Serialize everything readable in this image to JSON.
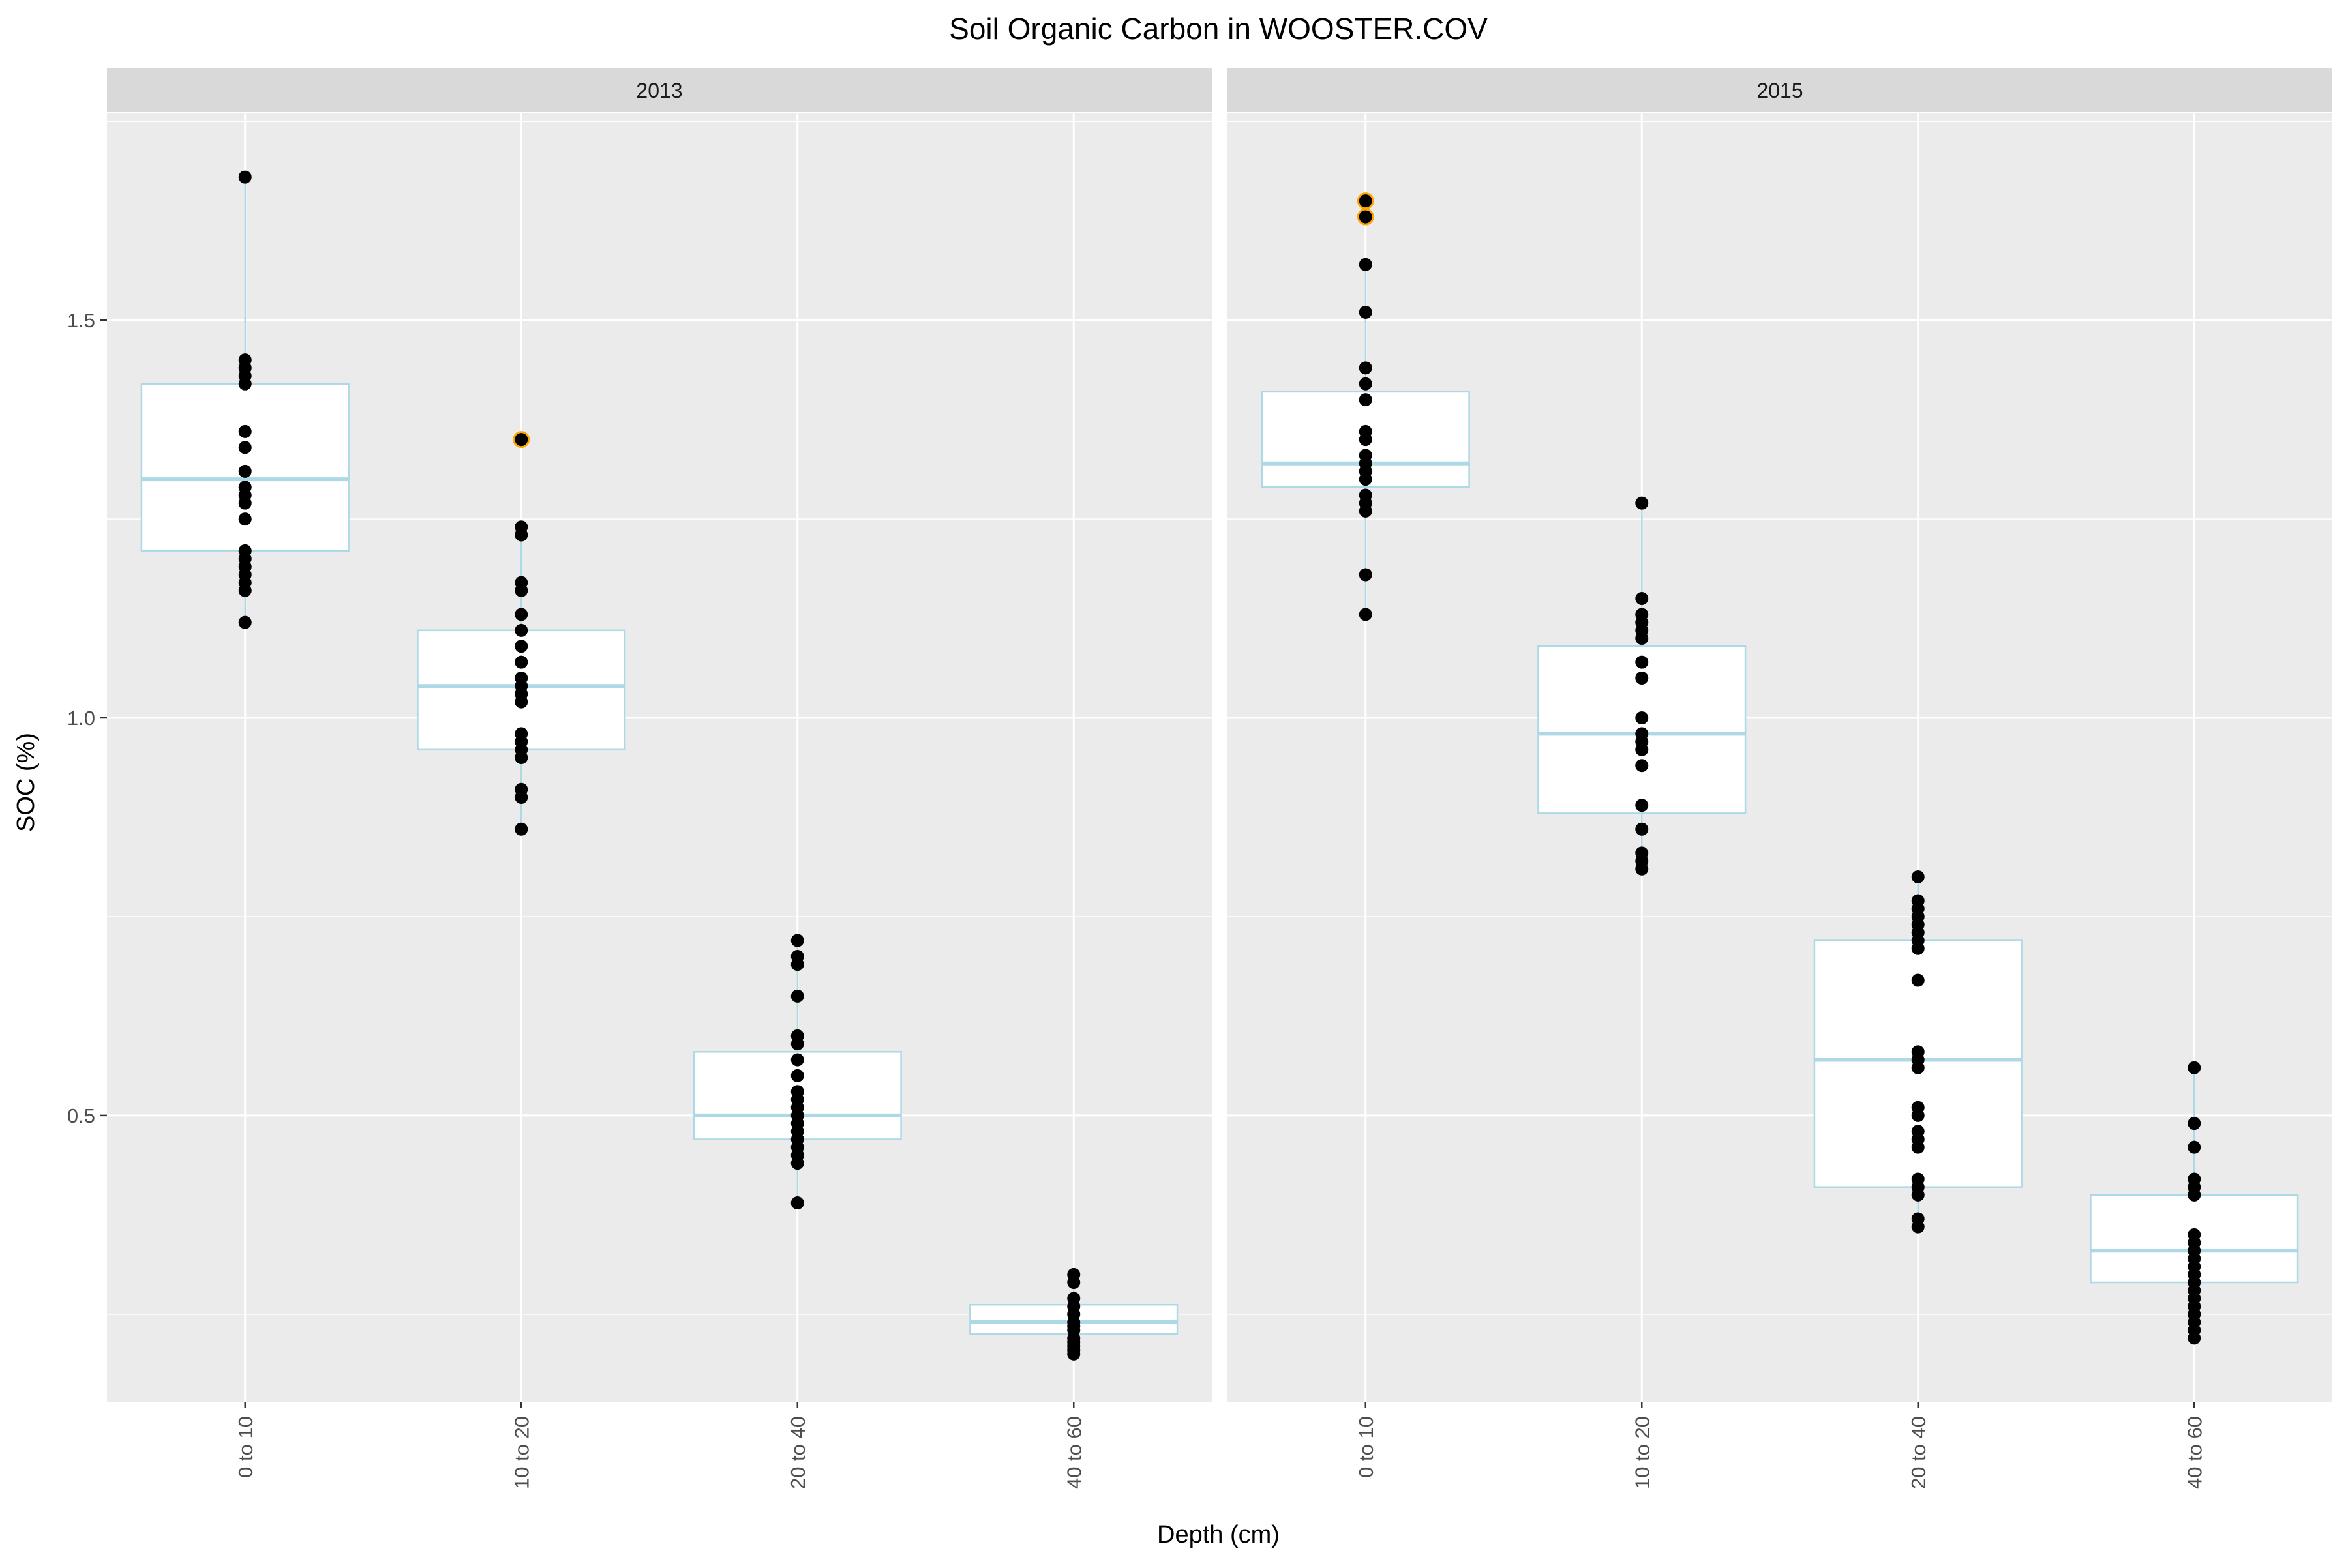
{
  "chart_data": {
    "type": "boxplot",
    "title": "Soil Organic Carbon in WOOSTER.COV",
    "xlabel": "Depth (cm)",
    "ylabel": "SOC (%)",
    "categories": [
      "0 to 10",
      "10 to 20",
      "20 to 40",
      "40 to 60"
    ],
    "y_ticks": [
      0.5,
      1.0,
      1.5
    ],
    "y_tick_labels": [
      "0.5",
      "1.0",
      "1.5"
    ],
    "ylim": [
      0.14,
      1.76
    ],
    "grid": true,
    "colors": {
      "panel_bg": "#ebebeb",
      "strip_bg": "#d9d9d9",
      "grid": "#ffffff",
      "box_stroke": "#add8e6",
      "box_fill": "#ffffff",
      "point": "#000000",
      "outlier_ring": "#ffa500"
    },
    "panels": [
      {
        "label": "2013",
        "boxes": [
          {
            "category": "0 to 10",
            "q1": 1.21,
            "median": 1.3,
            "q3": 1.42,
            "whisker_low": 1.12,
            "whisker_high": 1.68,
            "points": [
              1.68,
              1.45,
              1.44,
              1.43,
              1.42,
              1.36,
              1.34,
              1.31,
              1.29,
              1.28,
              1.27,
              1.25,
              1.21,
              1.2,
              1.19,
              1.18,
              1.17,
              1.16,
              1.12
            ],
            "outliers": []
          },
          {
            "category": "10 to 20",
            "q1": 0.96,
            "median": 1.04,
            "q3": 1.11,
            "whisker_low": 0.86,
            "whisker_high": 1.24,
            "points": [
              1.35,
              1.24,
              1.23,
              1.17,
              1.16,
              1.13,
              1.11,
              1.09,
              1.07,
              1.05,
              1.04,
              1.03,
              1.02,
              0.98,
              0.97,
              0.96,
              0.95,
              0.91,
              0.9,
              0.86
            ],
            "outliers": [
              1.35
            ]
          },
          {
            "category": "20 to 40",
            "q1": 0.47,
            "median": 0.5,
            "q3": 0.58,
            "whisker_low": 0.39,
            "whisker_high": 0.72,
            "points": [
              0.72,
              0.7,
              0.69,
              0.65,
              0.6,
              0.59,
              0.57,
              0.55,
              0.53,
              0.52,
              0.51,
              0.5,
              0.49,
              0.48,
              0.47,
              0.46,
              0.45,
              0.44,
              0.39
            ],
            "outliers": []
          },
          {
            "category": "40 to 60",
            "q1": 0.225,
            "median": 0.24,
            "q3": 0.262,
            "whisker_low": 0.2,
            "whisker_high": 0.3,
            "points": [
              0.3,
              0.29,
              0.27,
              0.26,
              0.25,
              0.24,
              0.235,
              0.23,
              0.22,
              0.215,
              0.21,
              0.205,
              0.2
            ],
            "outliers": []
          }
        ]
      },
      {
        "label": "2015",
        "boxes": [
          {
            "category": "0 to 10",
            "q1": 1.29,
            "median": 1.32,
            "q3": 1.41,
            "whisker_low": 1.13,
            "whisker_high": 1.57,
            "points": [
              1.65,
              1.63,
              1.57,
              1.51,
              1.44,
              1.42,
              1.4,
              1.36,
              1.35,
              1.33,
              1.32,
              1.31,
              1.3,
              1.28,
              1.27,
              1.26,
              1.18,
              1.13
            ],
            "outliers": [
              1.65,
              1.63
            ]
          },
          {
            "category": "10 to 20",
            "q1": 0.88,
            "median": 0.98,
            "q3": 1.09,
            "whisker_low": 0.81,
            "whisker_high": 1.27,
            "points": [
              1.27,
              1.15,
              1.13,
              1.12,
              1.11,
              1.1,
              1.07,
              1.05,
              1.0,
              0.98,
              0.97,
              0.96,
              0.94,
              0.89,
              0.86,
              0.83,
              0.82,
              0.81
            ],
            "outliers": []
          },
          {
            "category": "20 to 40",
            "q1": 0.41,
            "median": 0.57,
            "q3": 0.72,
            "whisker_low": 0.36,
            "whisker_high": 0.8,
            "points": [
              0.8,
              0.77,
              0.76,
              0.75,
              0.74,
              0.73,
              0.72,
              0.71,
              0.67,
              0.58,
              0.57,
              0.56,
              0.51,
              0.5,
              0.48,
              0.47,
              0.46,
              0.42,
              0.41,
              0.4,
              0.37,
              0.36
            ],
            "outliers": []
          },
          {
            "category": "40 to 60",
            "q1": 0.29,
            "median": 0.33,
            "q3": 0.4,
            "whisker_low": 0.22,
            "whisker_high": 0.56,
            "points": [
              0.56,
              0.49,
              0.46,
              0.42,
              0.41,
              0.4,
              0.35,
              0.34,
              0.33,
              0.32,
              0.31,
              0.3,
              0.29,
              0.28,
              0.27,
              0.26,
              0.25,
              0.24,
              0.23,
              0.22
            ],
            "outliers": []
          }
        ]
      }
    ]
  }
}
